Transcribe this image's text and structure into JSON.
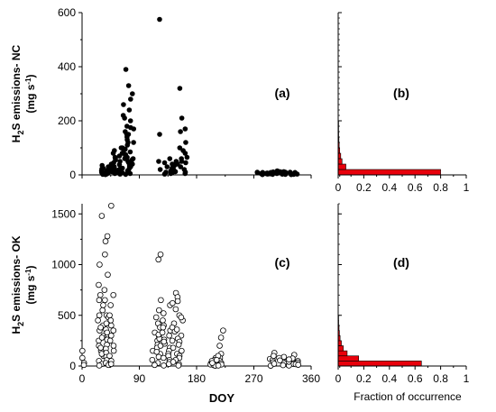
{
  "chart_data": [
    {
      "panel": "(a)",
      "type": "scatter",
      "ylabel_line1": "H",
      "ylabel_sub": "2",
      "ylabel_line1b": "S emissions- NC",
      "ylabel_line2": "(mg s",
      "ylabel_sup": "-1",
      "ylabel_line2b": ")",
      "ylim": [
        0,
        600
      ],
      "yticks": [
        0,
        200,
        400,
        600
      ],
      "xlim": [
        0,
        360
      ],
      "marker": "filled",
      "clusters": [
        {
          "x_range": [
            28,
            43
          ],
          "values": [
            5,
            2,
            10,
            20,
            8,
            3,
            15,
            30,
            12,
            6,
            4,
            25,
            18,
            9,
            1,
            35,
            22,
            14,
            7,
            11
          ]
        },
        {
          "x_range": [
            44,
            62
          ],
          "values": [
            40,
            60,
            15,
            30,
            80,
            10,
            25,
            50,
            5,
            20,
            70,
            35,
            12,
            45,
            90,
            8,
            100,
            55,
            18,
            28,
            65,
            3,
            38
          ]
        },
        {
          "x_range": [
            63,
            82
          ],
          "values": [
            390,
            330,
            300,
            280,
            260,
            240,
            220,
            200,
            180,
            175,
            160,
            150,
            140,
            130,
            120,
            110,
            100,
            95,
            90,
            85,
            80,
            75,
            70,
            65,
            60,
            55,
            50,
            45,
            40,
            35,
            30,
            25,
            20,
            15,
            10,
            5,
            2,
            120,
            170,
            210,
            150,
            60,
            30,
            8
          ]
        },
        {
          "x_range": [
            118,
            124
          ],
          "values": [
            575,
            150,
            50,
            20
          ]
        },
        {
          "x_range": [
            128,
            148
          ],
          "values": [
            40,
            30,
            20,
            50,
            60,
            10,
            5,
            25,
            35,
            15,
            8,
            45,
            12,
            3
          ]
        },
        {
          "x_range": [
            150,
            165
          ],
          "values": [
            320,
            210,
            170,
            160,
            120,
            100,
            80,
            60,
            50,
            40,
            30,
            20,
            10,
            5,
            65,
            90,
            45
          ]
        },
        {
          "x_range": [
            275,
            340
          ],
          "values": [
            5,
            10,
            3,
            8,
            12,
            2,
            6,
            15,
            4,
            9,
            7,
            1,
            11,
            5,
            3,
            8,
            6,
            10,
            4,
            2,
            7,
            9,
            5,
            12,
            3,
            6,
            8,
            1,
            10,
            4,
            7,
            5,
            9,
            2,
            6,
            8,
            3,
            11,
            5,
            7
          ]
        }
      ]
    },
    {
      "panel": "(b)",
      "type": "bar",
      "orientation": "horizontal",
      "xlim": [
        0,
        1
      ],
      "xticks": [
        "0",
        "0.2",
        "0.4",
        "0.6",
        "0.8",
        "1"
      ],
      "ylim": [
        0,
        600
      ],
      "bins": [
        {
          "y0": 0,
          "y1": 20,
          "value": 0.8
        },
        {
          "y0": 20,
          "y1": 40,
          "value": 0.06
        },
        {
          "y0": 40,
          "y1": 60,
          "value": 0.03
        },
        {
          "y0": 60,
          "y1": 80,
          "value": 0.02
        },
        {
          "y0": 80,
          "y1": 100,
          "value": 0.012
        },
        {
          "y0": 100,
          "y1": 120,
          "value": 0.008
        },
        {
          "y0": 120,
          "y1": 140,
          "value": 0.006
        },
        {
          "y0": 140,
          "y1": 160,
          "value": 0.004
        },
        {
          "y0": 160,
          "y1": 180,
          "value": 0.003
        },
        {
          "y0": 180,
          "y1": 200,
          "value": 0.002
        }
      ],
      "color": "#e8000b"
    },
    {
      "panel": "(c)",
      "type": "scatter",
      "ylabel_line1": "H",
      "ylabel_sub": "2",
      "ylabel_line1b": "S emissions- OK",
      "ylabel_line2": "(mg s",
      "ylabel_sup": "-1",
      "ylabel_line2b": ")",
      "ylim": [
        0,
        1600
      ],
      "yticks": [
        0,
        500,
        1000,
        1500
      ],
      "xlim": [
        0,
        360
      ],
      "xticks": [
        0,
        90,
        180,
        270,
        360
      ],
      "xlabel": "DOY",
      "marker": "open",
      "clusters": [
        {
          "x_range": [
            0,
            4
          ],
          "values": [
            150,
            80,
            30,
            10
          ]
        },
        {
          "x_range": [
            24,
            34
          ],
          "values": [
            1480,
            1000,
            800,
            700,
            600,
            500,
            450,
            400,
            350,
            300,
            250,
            200,
            150,
            100,
            50,
            20,
            5,
            550,
            650,
            380,
            280,
            180,
            120
          ]
        },
        {
          "x_range": [
            35,
            42
          ],
          "values": [
            1280,
            1230,
            1100,
            900,
            750,
            650,
            500,
            420,
            360,
            310,
            260,
            210,
            170,
            130,
            90,
            60,
            30,
            10,
            480,
            330
          ]
        },
        {
          "x_range": [
            43,
            50
          ],
          "values": [
            1580,
            700,
            600,
            500,
            400,
            300,
            200,
            150,
            100,
            50,
            20,
            250,
            350,
            450
          ]
        },
        {
          "x_range": [
            110,
            124
          ],
          "values": [
            1100,
            1050,
            650,
            550,
            480,
            420,
            380,
            330,
            290,
            250,
            210,
            180,
            150,
            120,
            90,
            60,
            30,
            10,
            270,
            310,
            200,
            140
          ]
        },
        {
          "x_range": [
            125,
            140
          ],
          "values": [
            600,
            520,
            450,
            400,
            350,
            300,
            260,
            220,
            180,
            150,
            120,
            100,
            80,
            60,
            40,
            20,
            5,
            380,
            330,
            240
          ]
        },
        {
          "x_range": [
            141,
            160
          ],
          "values": [
            720,
            680,
            640,
            620,
            560,
            500,
            450,
            420,
            380,
            340,
            300,
            270,
            240,
            210,
            180,
            150,
            120,
            100,
            80,
            60,
            40,
            20,
            5,
            480,
            360,
            250
          ]
        },
        {
          "x_range": [
            200,
            210
          ],
          "values": [
            80,
            60,
            40,
            25,
            15,
            8,
            3,
            50,
            30
          ]
        },
        {
          "x_range": [
            211,
            222
          ],
          "values": [
            350,
            280,
            200,
            120,
            80,
            50,
            30,
            15,
            5,
            100,
            60
          ]
        },
        {
          "x_range": [
            295,
            340
          ],
          "values": [
            130,
            110,
            90,
            80,
            70,
            60,
            50,
            45,
            40,
            35,
            30,
            25,
            20,
            15,
            10,
            5,
            100,
            75,
            55,
            42,
            28,
            18,
            8,
            3,
            65,
            38,
            22,
            12
          ]
        }
      ]
    },
    {
      "panel": "(d)",
      "type": "bar",
      "orientation": "horizontal",
      "xlim": [
        0,
        1
      ],
      "xticks": [
        "0",
        "0.2",
        "0.4",
        "0.6",
        "0.8",
        "1"
      ],
      "xlabel": "Fraction of occurrence",
      "ylim": [
        0,
        1600
      ],
      "bins": [
        {
          "y0": 0,
          "y1": 50,
          "value": 0.65
        },
        {
          "y0": 50,
          "y1": 100,
          "value": 0.16
        },
        {
          "y0": 100,
          "y1": 150,
          "value": 0.07
        },
        {
          "y0": 150,
          "y1": 200,
          "value": 0.04
        },
        {
          "y0": 200,
          "y1": 250,
          "value": 0.025
        },
        {
          "y0": 250,
          "y1": 300,
          "value": 0.015
        },
        {
          "y0": 300,
          "y1": 350,
          "value": 0.01
        },
        {
          "y0": 350,
          "y1": 400,
          "value": 0.007
        },
        {
          "y0": 400,
          "y1": 450,
          "value": 0.004
        },
        {
          "y0": 450,
          "y1": 500,
          "value": 0.003
        }
      ],
      "color": "#e8000b"
    }
  ]
}
